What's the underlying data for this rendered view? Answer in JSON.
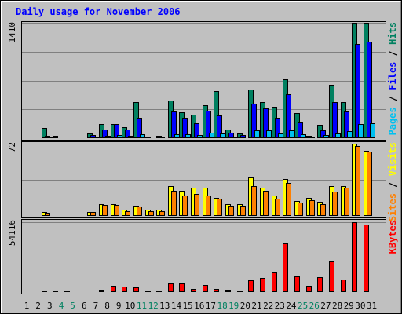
{
  "chart_data": {
    "type": "bar",
    "title": "Daily usage for November 2006",
    "categories": [
      "1",
      "2",
      "3",
      "4",
      "5",
      "6",
      "7",
      "8",
      "9",
      "10",
      "11",
      "12",
      "13",
      "14",
      "15",
      "16",
      "17",
      "18",
      "19",
      "20",
      "21",
      "22",
      "23",
      "24",
      "25",
      "26",
      "27",
      "28",
      "29",
      "30",
      "31"
    ],
    "weekend_days": [
      "4",
      "5",
      "11",
      "12",
      "18",
      "19",
      "25",
      "26"
    ],
    "panels": [
      {
        "id": "hits-files-pages",
        "ymax_label": "1410",
        "ymax": 1410,
        "side_labels": [
          {
            "text": "Pages",
            "color": "#00c0f0"
          },
          {
            "text": " / ",
            "color": "#000000"
          },
          {
            "text": "Files",
            "color": "#0000ff"
          },
          {
            "text": " / ",
            "color": "#000000"
          },
          {
            "text": "Hits",
            "color": "#008060"
          }
        ],
        "series": [
          {
            "name": "Hits",
            "color": "#008060",
            "values": [
              0,
              125,
              25,
              0,
              0,
              55,
              175,
              175,
              130,
              445,
              15,
              30,
              460,
              315,
              285,
              405,
              580,
              105,
              55,
              590,
              445,
              385,
              720,
              310,
              25,
              160,
              650,
              445,
              1410,
              1410,
              0
            ]
          },
          {
            "name": "Files",
            "color": "#0000ff",
            "values": [
              0,
              30,
              10,
              0,
              0,
              35,
              105,
              170,
              110,
              245,
              10,
              20,
              330,
              245,
              185,
              335,
              280,
              70,
              40,
              420,
              360,
              245,
              540,
              190,
              15,
              100,
              440,
              330,
              1150,
              1180,
              0
            ]
          },
          {
            "name": "Pages",
            "color": "#00c0f0",
            "values": [
              0,
              15,
              5,
              0,
              0,
              15,
              25,
              35,
              25,
              50,
              5,
              10,
              50,
              50,
              40,
              65,
              60,
              20,
              10,
              100,
              95,
              60,
              100,
              50,
              5,
              40,
              60,
              90,
              170,
              180,
              0
            ]
          }
        ]
      },
      {
        "id": "visits-sites",
        "ymax_label": "72",
        "ymax": 72,
        "side_labels": [
          {
            "text": "Sites",
            "color": "#ff8000"
          },
          {
            "text": " / ",
            "color": "#000000"
          },
          {
            "text": "Visits",
            "color": "#ffff00"
          }
        ],
        "series": [
          {
            "name": "Visits",
            "color": "#ffff00",
            "values": [
              1,
              4,
              1,
              0,
              0,
              4,
              12,
              12,
              6,
              10,
              6,
              6,
              30,
              25,
              28,
              28,
              18,
              12,
              12,
              38,
              28,
              20,
              37,
              15,
              18,
              14,
              30,
              30,
              72,
              65,
              0
            ]
          },
          {
            "name": "Sites",
            "color": "#ff8000",
            "values": [
              1,
              3,
              1,
              0,
              0,
              4,
              11,
              11,
              5,
              9,
              5,
              5,
              25,
              20,
              22,
              20,
              17,
              10,
              10,
              30,
              25,
              17,
              33,
              13,
              16,
              12,
              24,
              28,
              70,
              64,
              0
            ]
          }
        ]
      },
      {
        "id": "kbytes",
        "ymax_label": "54116",
        "ymax": 54116,
        "side_labels": [
          {
            "text": "KBytes",
            "color": "#ff0000"
          }
        ],
        "series": [
          {
            "name": "KBytes",
            "color": "#ff0000",
            "values": [
              0,
              1000,
              1000,
              1500,
              0,
              700,
              2000,
              5000,
              4500,
              3500,
              1000,
              1000,
              6500,
              6500,
              2500,
              5500,
              2500,
              1800,
              1500,
              9000,
              11000,
              15000,
              38000,
              12000,
              5000,
              11500,
              24000,
              10000,
              54116,
              52000,
              0
            ]
          }
        ]
      }
    ]
  }
}
